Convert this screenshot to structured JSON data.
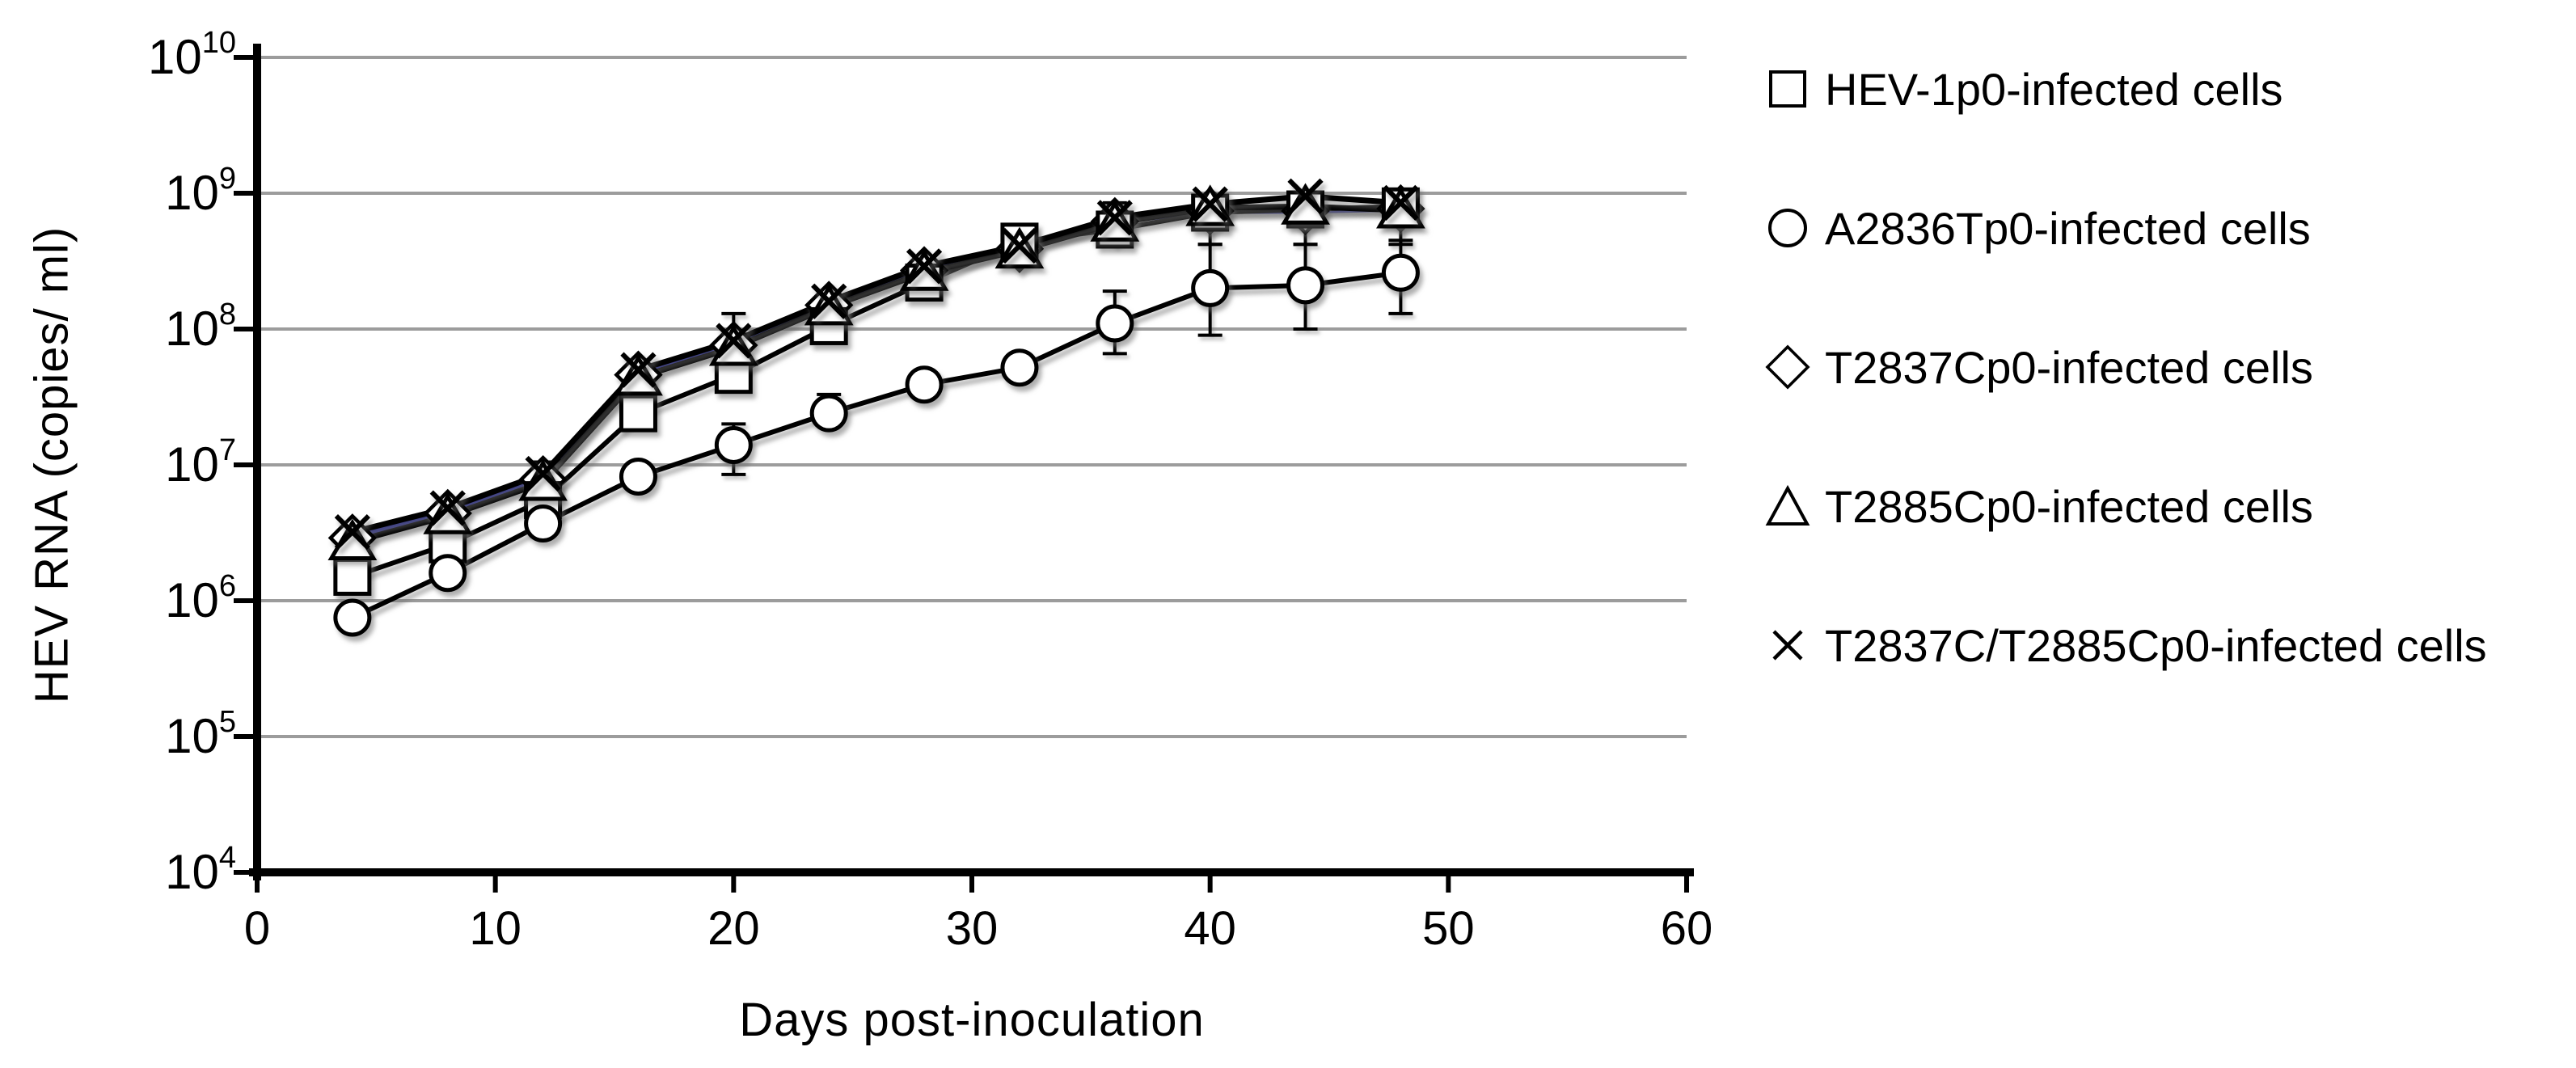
{
  "figure": {
    "background": "#ffffff"
  },
  "colors": {
    "axis": "#000000",
    "gridline": "#9c9c9c",
    "marker_stroke": "#000000",
    "marker_fill": "#ffffff",
    "highlight_line": "#2e3192"
  },
  "chart_data": {
    "type": "line",
    "title": "",
    "xlabel": "Days post-inoculation",
    "ylabel": "HEV RNA (copies/ ml)",
    "x_ticks": [
      0,
      10,
      20,
      30,
      40,
      50,
      60
    ],
    "y_tick_exponents": [
      4,
      5,
      6,
      7,
      8,
      9,
      10
    ],
    "xlim": [
      0,
      60
    ],
    "ylim": [
      10000,
      10000000000
    ],
    "yscale": "log10",
    "grid": "horizontal",
    "legend_position": "right-outside",
    "days": [
      4,
      8,
      12,
      16,
      20,
      24,
      28,
      32,
      36,
      40,
      44,
      48
    ],
    "series": [
      {
        "name": "HEV-1p0-infected cells",
        "marker": "square",
        "line_color": "#000000",
        "values": [
          1500000,
          2600000,
          5500000,
          24000000,
          46000000,
          105000000,
          220000000,
          440000000,
          540000000,
          720000000,
          760000000,
          800000000
        ]
      },
      {
        "name": "A2836Tp0-infected cells",
        "marker": "circle",
        "line_color": "#000000",
        "values": [
          750000,
          1600000,
          3700000,
          8200000,
          14000000,
          24000000,
          39000000,
          52000000,
          110000000,
          200000000,
          210000000,
          260000000
        ]
      },
      {
        "name": "T2837Cp0-infected cells",
        "marker": "diamond",
        "line_color": "#2e3192",
        "values": [
          2900000,
          4400000,
          7800000,
          46000000,
          76000000,
          150000000,
          270000000,
          390000000,
          620000000,
          740000000,
          740000000,
          770000000
        ]
      },
      {
        "name": "T2885Cp0-infected cells",
        "marker": "triangle",
        "line_color": "#000000",
        "values": [
          2700000,
          4200000,
          7400000,
          44000000,
          73000000,
          145000000,
          260000000,
          380000000,
          600000000,
          780000000,
          800000000,
          750000000
        ]
      },
      {
        "name": "T2837C/T2885Cp0-infected cells",
        "marker": "x",
        "line_color": "#000000",
        "values": [
          3200000,
          4800000,
          8600000,
          50000000,
          82000000,
          160000000,
          290000000,
          410000000,
          660000000,
          830000000,
          950000000,
          850000000
        ]
      }
    ],
    "error_bars": [
      {
        "series": 4,
        "day": 12,
        "hi": 10500000
      },
      {
        "series": 4,
        "day": 20,
        "hi": 130000000
      },
      {
        "series": 4,
        "day": 36,
        "hi": 850000000
      },
      {
        "series": 3,
        "day": 40,
        "lo": 420000000
      },
      {
        "series": 3,
        "day": 44,
        "lo": 420000000
      },
      {
        "series": 3,
        "day": 48,
        "lo": 420000000
      },
      {
        "series": 1,
        "day": 20,
        "lo": 8500000,
        "hi": 20000000
      },
      {
        "series": 1,
        "day": 24,
        "hi": 33000000
      },
      {
        "series": 1,
        "day": 36,
        "lo": 66000000,
        "hi": 190000000
      },
      {
        "series": 1,
        "day": 40,
        "lo": 90000000,
        "hi": 420000000
      },
      {
        "series": 1,
        "day": 44,
        "lo": 100000000,
        "hi": 420000000
      },
      {
        "series": 1,
        "day": 48,
        "lo": 130000000,
        "hi": 450000000
      }
    ]
  }
}
